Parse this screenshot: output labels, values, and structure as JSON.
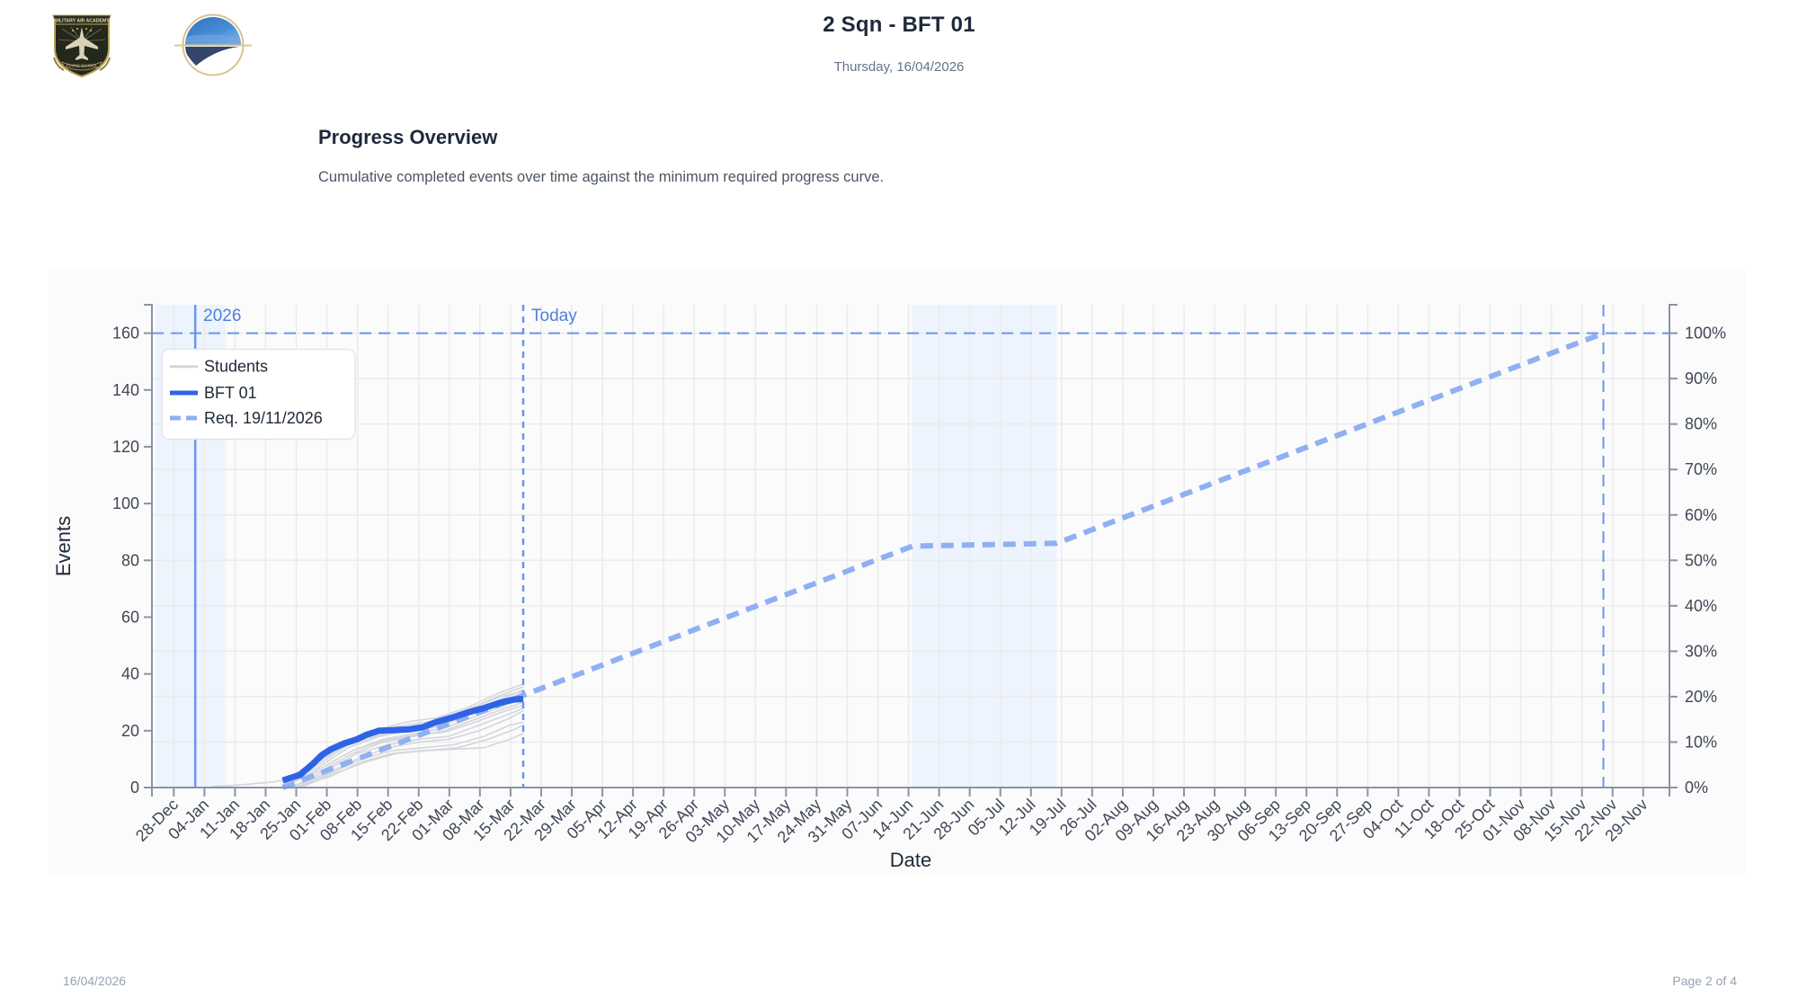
{
  "header": {
    "title": "2 Sqn - BFT 01",
    "date": "Thursday, 16/04/2026",
    "crest_logo": {
      "text_top": "MILITARY AIR ACADEMY",
      "text_bottom": "FLYING SCHOOL"
    }
  },
  "section": {
    "title": "Progress Overview",
    "description": "Cumulative completed events over time against the minimum required progress curve."
  },
  "footer": {
    "date": "16/04/2026",
    "page": "Page 2 of 4"
  },
  "colors": {
    "axis": "#8a93a6",
    "tick_text": "#3f4757",
    "grid": "#ebebeb",
    "shade": "#edf4fd",
    "annotation": "#6b95ea",
    "annotation_text": "#4d7fe0",
    "students": "#d3d6dc",
    "bft": "#2f63e6",
    "required": "#8fb0f2"
  },
  "chart_data": {
    "type": "line",
    "title": "Progress Overview",
    "subtitle": "Cumulative completed events over time against the minimum required progress curve.",
    "xlabel": "Date",
    "ylabel": "Events",
    "xlim": [
      "2025-12-23",
      "2026-12-05"
    ],
    "ylim": [
      0,
      170
    ],
    "grid": true,
    "yticks": [
      0,
      20,
      40,
      60,
      80,
      100,
      120,
      140,
      160
    ],
    "y2ticks": {
      "max_events": 160,
      "labels": [
        "0%",
        "10%",
        "20%",
        "30%",
        "40%",
        "50%",
        "60%",
        "70%",
        "80%",
        "90%",
        "100%"
      ]
    },
    "xticks": {
      "start": "2025-12-28",
      "step_days": 7,
      "labels": [
        "28-Dec",
        "04-Jan",
        "11-Jan",
        "18-Jan",
        "25-Jan",
        "01-Feb",
        "08-Feb",
        "15-Feb",
        "22-Feb",
        "01-Mar",
        "08-Mar",
        "15-Mar",
        "22-Mar",
        "29-Mar",
        "05-Apr",
        "12-Apr",
        "19-Apr",
        "26-Apr",
        "03-May",
        "10-May",
        "17-May",
        "24-May",
        "31-May",
        "07-Jun",
        "14-Jun",
        "21-Jun",
        "28-Jun",
        "05-Jul",
        "12-Jul",
        "19-Jul",
        "26-Jul",
        "02-Aug",
        "09-Aug",
        "16-Aug",
        "23-Aug",
        "30-Aug",
        "06-Sep",
        "13-Sep",
        "20-Sep",
        "27-Sep",
        "04-Oct",
        "11-Oct",
        "18-Oct",
        "25-Oct",
        "01-Nov",
        "08-Nov",
        "15-Nov",
        "22-Nov",
        "29-Nov"
      ]
    },
    "legend": {
      "position": "upper-left",
      "items": [
        {
          "label": "Students",
          "style": "thin-solid",
          "color": "#d3d6dc"
        },
        {
          "label": "BFT 01",
          "style": "thick-solid",
          "color": "#2f63e6"
        },
        {
          "label": "Req. 19/11/2026",
          "style": "dashed",
          "color": "#8fb0f2"
        }
      ]
    },
    "annotations": [
      {
        "type": "vline",
        "date": "2026-01-01",
        "label": "2026",
        "style": "solid"
      },
      {
        "type": "vline",
        "date": "2026-03-17",
        "label": "Today",
        "style": "dotted"
      },
      {
        "type": "vline",
        "date": "2026-11-19",
        "label": "",
        "style": "dashed"
      },
      {
        "type": "hline",
        "value": 160,
        "label": "",
        "style": "dashed"
      }
    ],
    "shaded_regions": [
      {
        "from": "2025-12-23",
        "to": "2026-01-08"
      },
      {
        "from": "2026-06-14",
        "to": "2026-07-17"
      }
    ],
    "series": [
      {
        "name": "BFT 01",
        "color": "#2f63e6",
        "points": [
          [
            "2026-01-21",
            2.5
          ],
          [
            "2026-01-25",
            4.5
          ],
          [
            "2026-01-28",
            8.5
          ],
          [
            "2026-01-30",
            11.5
          ],
          [
            "2026-02-01",
            13.5
          ],
          [
            "2026-02-04",
            15.5
          ],
          [
            "2026-02-07",
            17
          ],
          [
            "2026-02-09",
            18.5
          ],
          [
            "2026-02-12",
            20
          ],
          [
            "2026-02-15",
            20.2
          ],
          [
            "2026-02-19",
            20.5
          ],
          [
            "2026-02-22",
            21.2
          ],
          [
            "2026-02-25",
            23
          ],
          [
            "2026-03-01",
            24.8
          ],
          [
            "2026-03-04",
            26.3
          ],
          [
            "2026-03-08",
            28
          ],
          [
            "2026-03-12",
            30
          ],
          [
            "2026-03-15",
            31
          ],
          [
            "2026-03-17",
            31.2
          ]
        ]
      },
      {
        "name": "Req. 19/11/2026",
        "color": "#8fb0f2",
        "points": [
          [
            "2026-01-21",
            0
          ],
          [
            "2026-06-14",
            85
          ],
          [
            "2026-07-17",
            86
          ],
          [
            "2026-11-19",
            160
          ]
        ]
      }
    ],
    "students": [
      [
        [
          "2026-01-05",
          0.3
        ],
        [
          "2026-01-12",
          1
        ],
        [
          "2026-01-19",
          2
        ],
        [
          "2026-01-22",
          3
        ],
        [
          "2026-01-28",
          9
        ],
        [
          "2026-02-04",
          16
        ],
        [
          "2026-02-11",
          20
        ],
        [
          "2026-02-18",
          23
        ],
        [
          "2026-02-25",
          24.5
        ],
        [
          "2026-03-04",
          28
        ],
        [
          "2026-03-11",
          33
        ],
        [
          "2026-03-17",
          36.5
        ]
      ],
      [
        [
          "2026-01-21",
          2
        ],
        [
          "2026-01-28",
          8
        ],
        [
          "2026-02-04",
          15
        ],
        [
          "2026-02-11",
          19.5
        ],
        [
          "2026-02-18",
          22
        ],
        [
          "2026-02-25",
          23.5
        ],
        [
          "2026-03-04",
          27
        ],
        [
          "2026-03-11",
          32
        ],
        [
          "2026-03-17",
          35.5
        ]
      ],
      [
        [
          "2026-01-21",
          1
        ],
        [
          "2026-01-29",
          8
        ],
        [
          "2026-02-05",
          15
        ],
        [
          "2026-02-12",
          18.5
        ],
        [
          "2026-02-19",
          21
        ],
        [
          "2026-02-26",
          22.5
        ],
        [
          "2026-03-05",
          27
        ],
        [
          "2026-03-12",
          31
        ],
        [
          "2026-03-17",
          34.5
        ]
      ],
      [
        [
          "2026-01-21",
          2
        ],
        [
          "2026-01-29",
          7
        ],
        [
          "2026-02-05",
          14
        ],
        [
          "2026-02-12",
          18
        ],
        [
          "2026-02-19",
          20
        ],
        [
          "2026-02-26",
          21.5
        ],
        [
          "2026-03-05",
          26
        ],
        [
          "2026-03-12",
          30
        ],
        [
          "2026-03-17",
          33.5
        ]
      ],
      [
        [
          "2026-01-22",
          1
        ],
        [
          "2026-01-30",
          7
        ],
        [
          "2026-02-06",
          13
        ],
        [
          "2026-02-13",
          17
        ],
        [
          "2026-02-20",
          19
        ],
        [
          "2026-02-27",
          21
        ],
        [
          "2026-03-06",
          25
        ],
        [
          "2026-03-13",
          29
        ],
        [
          "2026-03-17",
          32.5
        ]
      ],
      [
        [
          "2026-01-22",
          1
        ],
        [
          "2026-01-30",
          6
        ],
        [
          "2026-02-06",
          12
        ],
        [
          "2026-02-13",
          16
        ],
        [
          "2026-02-20",
          18
        ],
        [
          "2026-02-27",
          20
        ],
        [
          "2026-03-06",
          24
        ],
        [
          "2026-03-13",
          28
        ],
        [
          "2026-03-17",
          30
        ]
      ],
      [
        [
          "2026-01-23",
          0
        ],
        [
          "2026-01-31",
          6
        ],
        [
          "2026-02-07",
          12
        ],
        [
          "2026-02-14",
          15
        ],
        [
          "2026-02-21",
          17
        ],
        [
          "2026-02-28",
          18
        ],
        [
          "2026-03-07",
          22
        ],
        [
          "2026-03-14",
          26
        ],
        [
          "2026-03-17",
          28
        ]
      ],
      [
        [
          "2026-01-23",
          0
        ],
        [
          "2026-01-31",
          5
        ],
        [
          "2026-02-07",
          10
        ],
        [
          "2026-02-14",
          14
        ],
        [
          "2026-02-21",
          16
        ],
        [
          "2026-02-28",
          17
        ],
        [
          "2026-03-07",
          20
        ],
        [
          "2026-03-14",
          24.5
        ],
        [
          "2026-03-17",
          27
        ]
      ],
      [
        [
          "2026-01-24",
          0
        ],
        [
          "2026-02-01",
          5
        ],
        [
          "2026-02-08",
          10
        ],
        [
          "2026-02-15",
          13
        ],
        [
          "2026-02-22",
          14
        ],
        [
          "2026-03-01",
          15
        ],
        [
          "2026-03-08",
          18
        ],
        [
          "2026-03-14",
          22
        ],
        [
          "2026-03-17",
          23
        ]
      ],
      [
        [
          "2026-01-24",
          0
        ],
        [
          "2026-02-01",
          4
        ],
        [
          "2026-02-08",
          9
        ],
        [
          "2026-02-15",
          12
        ],
        [
          "2026-02-22",
          13
        ],
        [
          "2026-03-01",
          13.5
        ],
        [
          "2026-03-08",
          14
        ],
        [
          "2026-03-14",
          17
        ],
        [
          "2026-03-17",
          19
        ]
      ],
      [
        [
          "2026-01-25",
          0
        ],
        [
          "2026-02-02",
          5
        ],
        [
          "2026-02-09",
          9
        ],
        [
          "2026-02-16",
          12
        ],
        [
          "2026-02-23",
          13
        ],
        [
          "2026-03-02",
          14
        ],
        [
          "2026-03-09",
          17
        ],
        [
          "2026-03-15",
          20.5
        ],
        [
          "2026-03-17",
          22
        ]
      ],
      [
        [
          "2026-01-21",
          2
        ],
        [
          "2026-01-29",
          9
        ],
        [
          "2026-02-05",
          15.5
        ],
        [
          "2026-02-12",
          19.5
        ],
        [
          "2026-02-19",
          21.5
        ],
        [
          "2026-02-26",
          23
        ],
        [
          "2026-03-05",
          28
        ],
        [
          "2026-03-12",
          32
        ],
        [
          "2026-03-17",
          34
        ]
      ],
      [
        [
          "2026-01-22",
          1
        ],
        [
          "2026-01-30",
          7
        ],
        [
          "2026-02-06",
          13
        ],
        [
          "2026-02-13",
          16.5
        ],
        [
          "2026-02-20",
          18.5
        ],
        [
          "2026-02-27",
          19.5
        ],
        [
          "2026-03-06",
          23
        ],
        [
          "2026-03-13",
          27
        ],
        [
          "2026-03-17",
          29
        ]
      ]
    ]
  }
}
